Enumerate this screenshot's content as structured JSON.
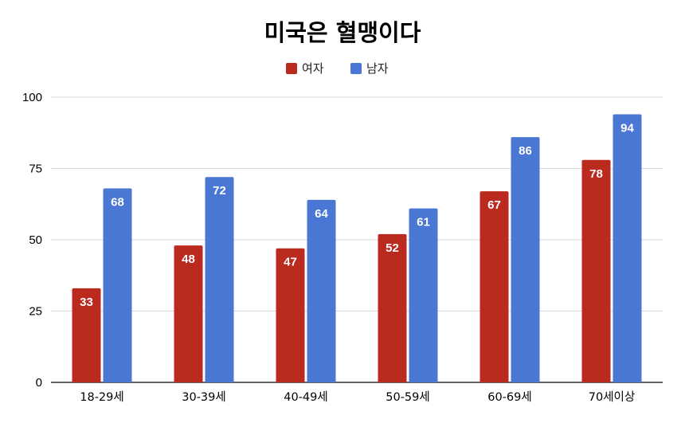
{
  "chart_data": {
    "type": "bar",
    "title": "미국은 혈맹이다",
    "xlabel": "",
    "ylabel": "",
    "categories": [
      "18-29세",
      "30-39세",
      "40-49세",
      "50-59세",
      "60-69세",
      "70세이상"
    ],
    "series": [
      {
        "name": "여자",
        "color": "#bb2a1f",
        "values": [
          33,
          48,
          47,
          52,
          67,
          78
        ]
      },
      {
        "name": "남자",
        "color": "#4a77d4",
        "values": [
          68,
          72,
          64,
          61,
          86,
          94
        ]
      }
    ],
    "ylim": [
      0,
      100
    ],
    "yticks": [
      0,
      25,
      50,
      75,
      100
    ],
    "grid": true,
    "legend_position": "top-center",
    "data_labels": true
  }
}
